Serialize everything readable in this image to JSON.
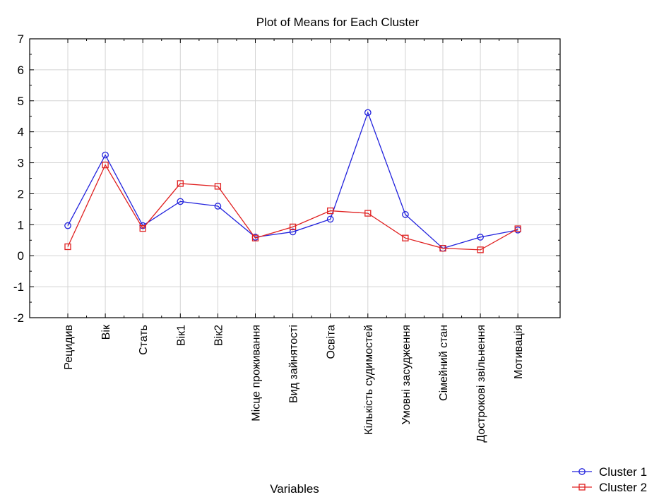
{
  "chart_data": {
    "type": "line",
    "title": "Plot of Means for Each Cluster",
    "xlabel": "Variables",
    "ylabel": "",
    "ylim": [
      -2,
      7
    ],
    "yticks": [
      7,
      6,
      5,
      4,
      3,
      2,
      1,
      0,
      -1,
      -2
    ],
    "grid": true,
    "legend_position": "bottom-right",
    "categories": [
      "Рецидив",
      "Вік",
      "Стать",
      "Вік1",
      "Вік2",
      "Місце проживання",
      "Вид зайнятості",
      "Освіта",
      "Кількість судимостей",
      "Умовні засудження",
      "Сімейний стан",
      "Дострокові звільнення",
      "Мотивація"
    ],
    "series": [
      {
        "name": "Cluster  1",
        "color": "#2222dd",
        "marker": "circle",
        "values": [
          0.97,
          3.25,
          0.97,
          1.75,
          1.6,
          0.6,
          0.77,
          1.18,
          4.62,
          1.33,
          0.24,
          0.6,
          0.83
        ]
      },
      {
        "name": "Cluster  2",
        "color": "#e02020",
        "marker": "square",
        "values": [
          0.29,
          2.93,
          0.88,
          2.33,
          2.24,
          0.57,
          0.93,
          1.45,
          1.37,
          0.57,
          0.24,
          0.19,
          0.87
        ]
      }
    ]
  }
}
